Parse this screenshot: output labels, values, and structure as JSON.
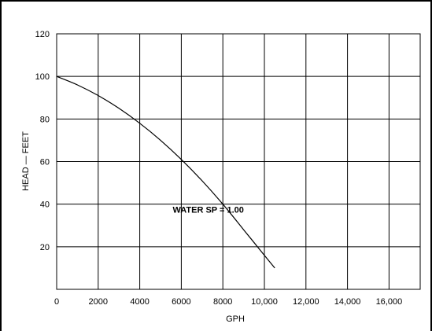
{
  "chart_data": {
    "type": "line",
    "xlabel": "GPH",
    "ylabel": "HEAD — FEET",
    "xlim": [
      0,
      17500
    ],
    "ylim": [
      0,
      120
    ],
    "grid": true,
    "x_ticks": [
      0,
      2000,
      4000,
      6000,
      8000,
      10000,
      12000,
      14000,
      16000
    ],
    "x_tick_labels": [
      "0",
      "2000",
      "4000",
      "6000",
      "8000",
      "10,000",
      "12,000",
      "14,000",
      "16,000"
    ],
    "y_ticks": [
      20,
      40,
      60,
      80,
      100,
      120
    ],
    "y_tick_labels": [
      "20",
      "40",
      "60",
      "80",
      "100",
      "120"
    ],
    "series": [
      {
        "x": [
          0,
          1000,
          2000,
          3000,
          4000,
          5000,
          6000,
          7000,
          8000,
          9000,
          10000,
          10500
        ],
        "y": [
          100,
          96,
          91,
          85,
          78,
          70,
          61,
          51,
          40,
          28,
          16,
          10
        ]
      }
    ],
    "annotations": [
      {
        "text": "WATER SP = 1.00",
        "x": 7300,
        "y": 36
      }
    ]
  },
  "colors": {
    "line": "#000000",
    "grid": "#000000",
    "border": "#000000",
    "background": "#ffffff"
  }
}
